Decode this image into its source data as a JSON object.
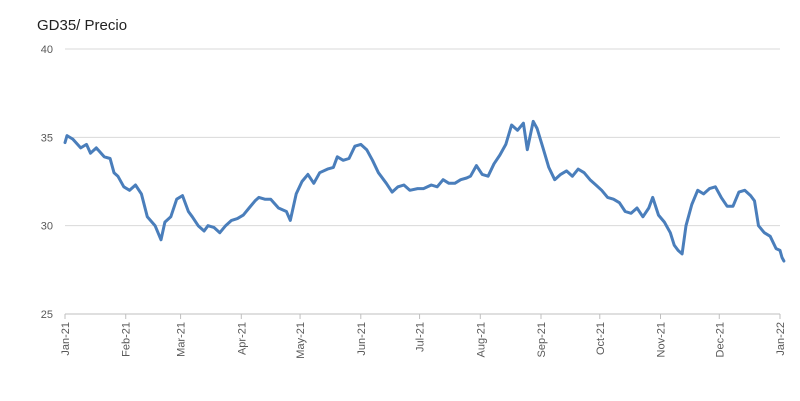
{
  "chart_data": {
    "type": "line",
    "title": "GD35/ Precio",
    "xlabel": "",
    "ylabel": "",
    "ylim": [
      25,
      40
    ],
    "yticks": [
      25,
      30,
      35,
      40
    ],
    "x_categories": [
      "Jan-21",
      "Feb-21",
      "Mar-21",
      "Apr-21",
      "May-21",
      "Jun-21",
      "Jul-21",
      "Aug-21",
      "Sep-21",
      "Oct-21",
      "Nov-21",
      "Dec-21",
      "Jan-22"
    ],
    "grid": true,
    "legend": "none",
    "series": [
      {
        "color": "#4a7ebb",
        "points": [
          [
            "2021-01-01",
            34.7
          ],
          [
            "2021-01-02",
            35.1
          ],
          [
            "2021-01-05",
            34.9
          ],
          [
            "2021-01-09",
            34.4
          ],
          [
            "2021-01-12",
            34.6
          ],
          [
            "2021-01-14",
            34.1
          ],
          [
            "2021-01-17",
            34.4
          ],
          [
            "2021-01-21",
            33.9
          ],
          [
            "2021-01-24",
            33.8
          ],
          [
            "2021-01-26",
            33.0
          ],
          [
            "2021-01-28",
            32.8
          ],
          [
            "2021-01-31",
            32.2
          ],
          [
            "2021-02-03",
            32.0
          ],
          [
            "2021-02-06",
            32.3
          ],
          [
            "2021-02-09",
            31.8
          ],
          [
            "2021-02-12",
            30.5
          ],
          [
            "2021-02-16",
            30.0
          ],
          [
            "2021-02-19",
            29.2
          ],
          [
            "2021-02-21",
            30.2
          ],
          [
            "2021-02-24",
            30.5
          ],
          [
            "2021-02-27",
            31.5
          ],
          [
            "2021-03-02",
            31.7
          ],
          [
            "2021-03-05",
            30.8
          ],
          [
            "2021-03-07",
            30.5
          ],
          [
            "2021-03-10",
            30.0
          ],
          [
            "2021-03-13",
            29.7
          ],
          [
            "2021-03-15",
            30.0
          ],
          [
            "2021-03-18",
            29.9
          ],
          [
            "2021-03-21",
            29.6
          ],
          [
            "2021-03-24",
            30.0
          ],
          [
            "2021-03-27",
            30.3
          ],
          [
            "2021-03-30",
            30.4
          ],
          [
            "2021-04-02",
            30.6
          ],
          [
            "2021-04-05",
            31.0
          ],
          [
            "2021-04-08",
            31.4
          ],
          [
            "2021-04-10",
            31.6
          ],
          [
            "2021-04-13",
            31.5
          ],
          [
            "2021-04-16",
            31.5
          ],
          [
            "2021-04-20",
            31.0
          ],
          [
            "2021-04-24",
            30.8
          ],
          [
            "2021-04-26",
            30.3
          ],
          [
            "2021-04-29",
            31.8
          ],
          [
            "2021-05-02",
            32.5
          ],
          [
            "2021-05-05",
            32.9
          ],
          [
            "2021-05-08",
            32.4
          ],
          [
            "2021-05-11",
            33.0
          ],
          [
            "2021-05-15",
            33.2
          ],
          [
            "2021-05-18",
            33.3
          ],
          [
            "2021-05-20",
            33.9
          ],
          [
            "2021-05-23",
            33.7
          ],
          [
            "2021-05-26",
            33.8
          ],
          [
            "2021-05-29",
            34.5
          ],
          [
            "2021-06-01",
            34.6
          ],
          [
            "2021-06-04",
            34.3
          ],
          [
            "2021-06-07",
            33.7
          ],
          [
            "2021-06-10",
            33.0
          ],
          [
            "2021-06-14",
            32.4
          ],
          [
            "2021-06-17",
            31.9
          ],
          [
            "2021-06-20",
            32.2
          ],
          [
            "2021-06-23",
            32.3
          ],
          [
            "2021-06-26",
            32.0
          ],
          [
            "2021-06-30",
            32.1
          ],
          [
            "2021-07-03",
            32.1
          ],
          [
            "2021-07-07",
            32.3
          ],
          [
            "2021-07-10",
            32.2
          ],
          [
            "2021-07-13",
            32.6
          ],
          [
            "2021-07-16",
            32.4
          ],
          [
            "2021-07-19",
            32.4
          ],
          [
            "2021-07-22",
            32.6
          ],
          [
            "2021-07-25",
            32.7
          ],
          [
            "2021-07-27",
            32.8
          ],
          [
            "2021-07-30",
            33.4
          ],
          [
            "2021-08-02",
            32.9
          ],
          [
            "2021-08-05",
            32.8
          ],
          [
            "2021-08-08",
            33.5
          ],
          [
            "2021-08-11",
            34.0
          ],
          [
            "2021-08-14",
            34.6
          ],
          [
            "2021-08-17",
            35.7
          ],
          [
            "2021-08-20",
            35.4
          ],
          [
            "2021-08-23",
            35.8
          ],
          [
            "2021-08-25",
            34.3
          ],
          [
            "2021-08-28",
            35.9
          ],
          [
            "2021-08-30",
            35.5
          ],
          [
            "2021-09-02",
            34.4
          ],
          [
            "2021-09-05",
            33.3
          ],
          [
            "2021-09-08",
            32.6
          ],
          [
            "2021-09-11",
            32.9
          ],
          [
            "2021-09-14",
            33.1
          ],
          [
            "2021-09-17",
            32.8
          ],
          [
            "2021-09-20",
            33.2
          ],
          [
            "2021-09-23",
            33.0
          ],
          [
            "2021-09-26",
            32.6
          ],
          [
            "2021-09-29",
            32.3
          ],
          [
            "2021-10-02",
            32.0
          ],
          [
            "2021-10-05",
            31.6
          ],
          [
            "2021-10-08",
            31.5
          ],
          [
            "2021-10-11",
            31.3
          ],
          [
            "2021-10-14",
            30.8
          ],
          [
            "2021-10-17",
            30.7
          ],
          [
            "2021-10-20",
            31.0
          ],
          [
            "2021-10-23",
            30.5
          ],
          [
            "2021-10-26",
            31.0
          ],
          [
            "2021-10-28",
            31.6
          ],
          [
            "2021-10-31",
            30.6
          ],
          [
            "2021-11-03",
            30.2
          ],
          [
            "2021-11-06",
            29.6
          ],
          [
            "2021-11-08",
            28.9
          ],
          [
            "2021-11-10",
            28.6
          ],
          [
            "2021-11-12",
            28.4
          ],
          [
            "2021-11-14",
            30.0
          ],
          [
            "2021-11-17",
            31.2
          ],
          [
            "2021-11-20",
            32.0
          ],
          [
            "2021-11-23",
            31.8
          ],
          [
            "2021-11-26",
            32.1
          ],
          [
            "2021-11-29",
            32.2
          ],
          [
            "2021-12-02",
            31.6
          ],
          [
            "2021-12-05",
            31.1
          ],
          [
            "2021-12-08",
            31.1
          ],
          [
            "2021-12-11",
            31.9
          ],
          [
            "2021-12-14",
            32.0
          ],
          [
            "2021-12-17",
            31.7
          ],
          [
            "2021-12-19",
            31.4
          ],
          [
            "2021-12-21",
            30.0
          ],
          [
            "2021-12-24",
            29.6
          ],
          [
            "2021-12-27",
            29.4
          ],
          [
            "2021-12-30",
            28.7
          ],
          [
            "2022-01-01",
            28.6
          ],
          [
            "2022-01-02",
            28.2
          ],
          [
            "2022-01-03",
            28.0
          ]
        ]
      }
    ]
  }
}
